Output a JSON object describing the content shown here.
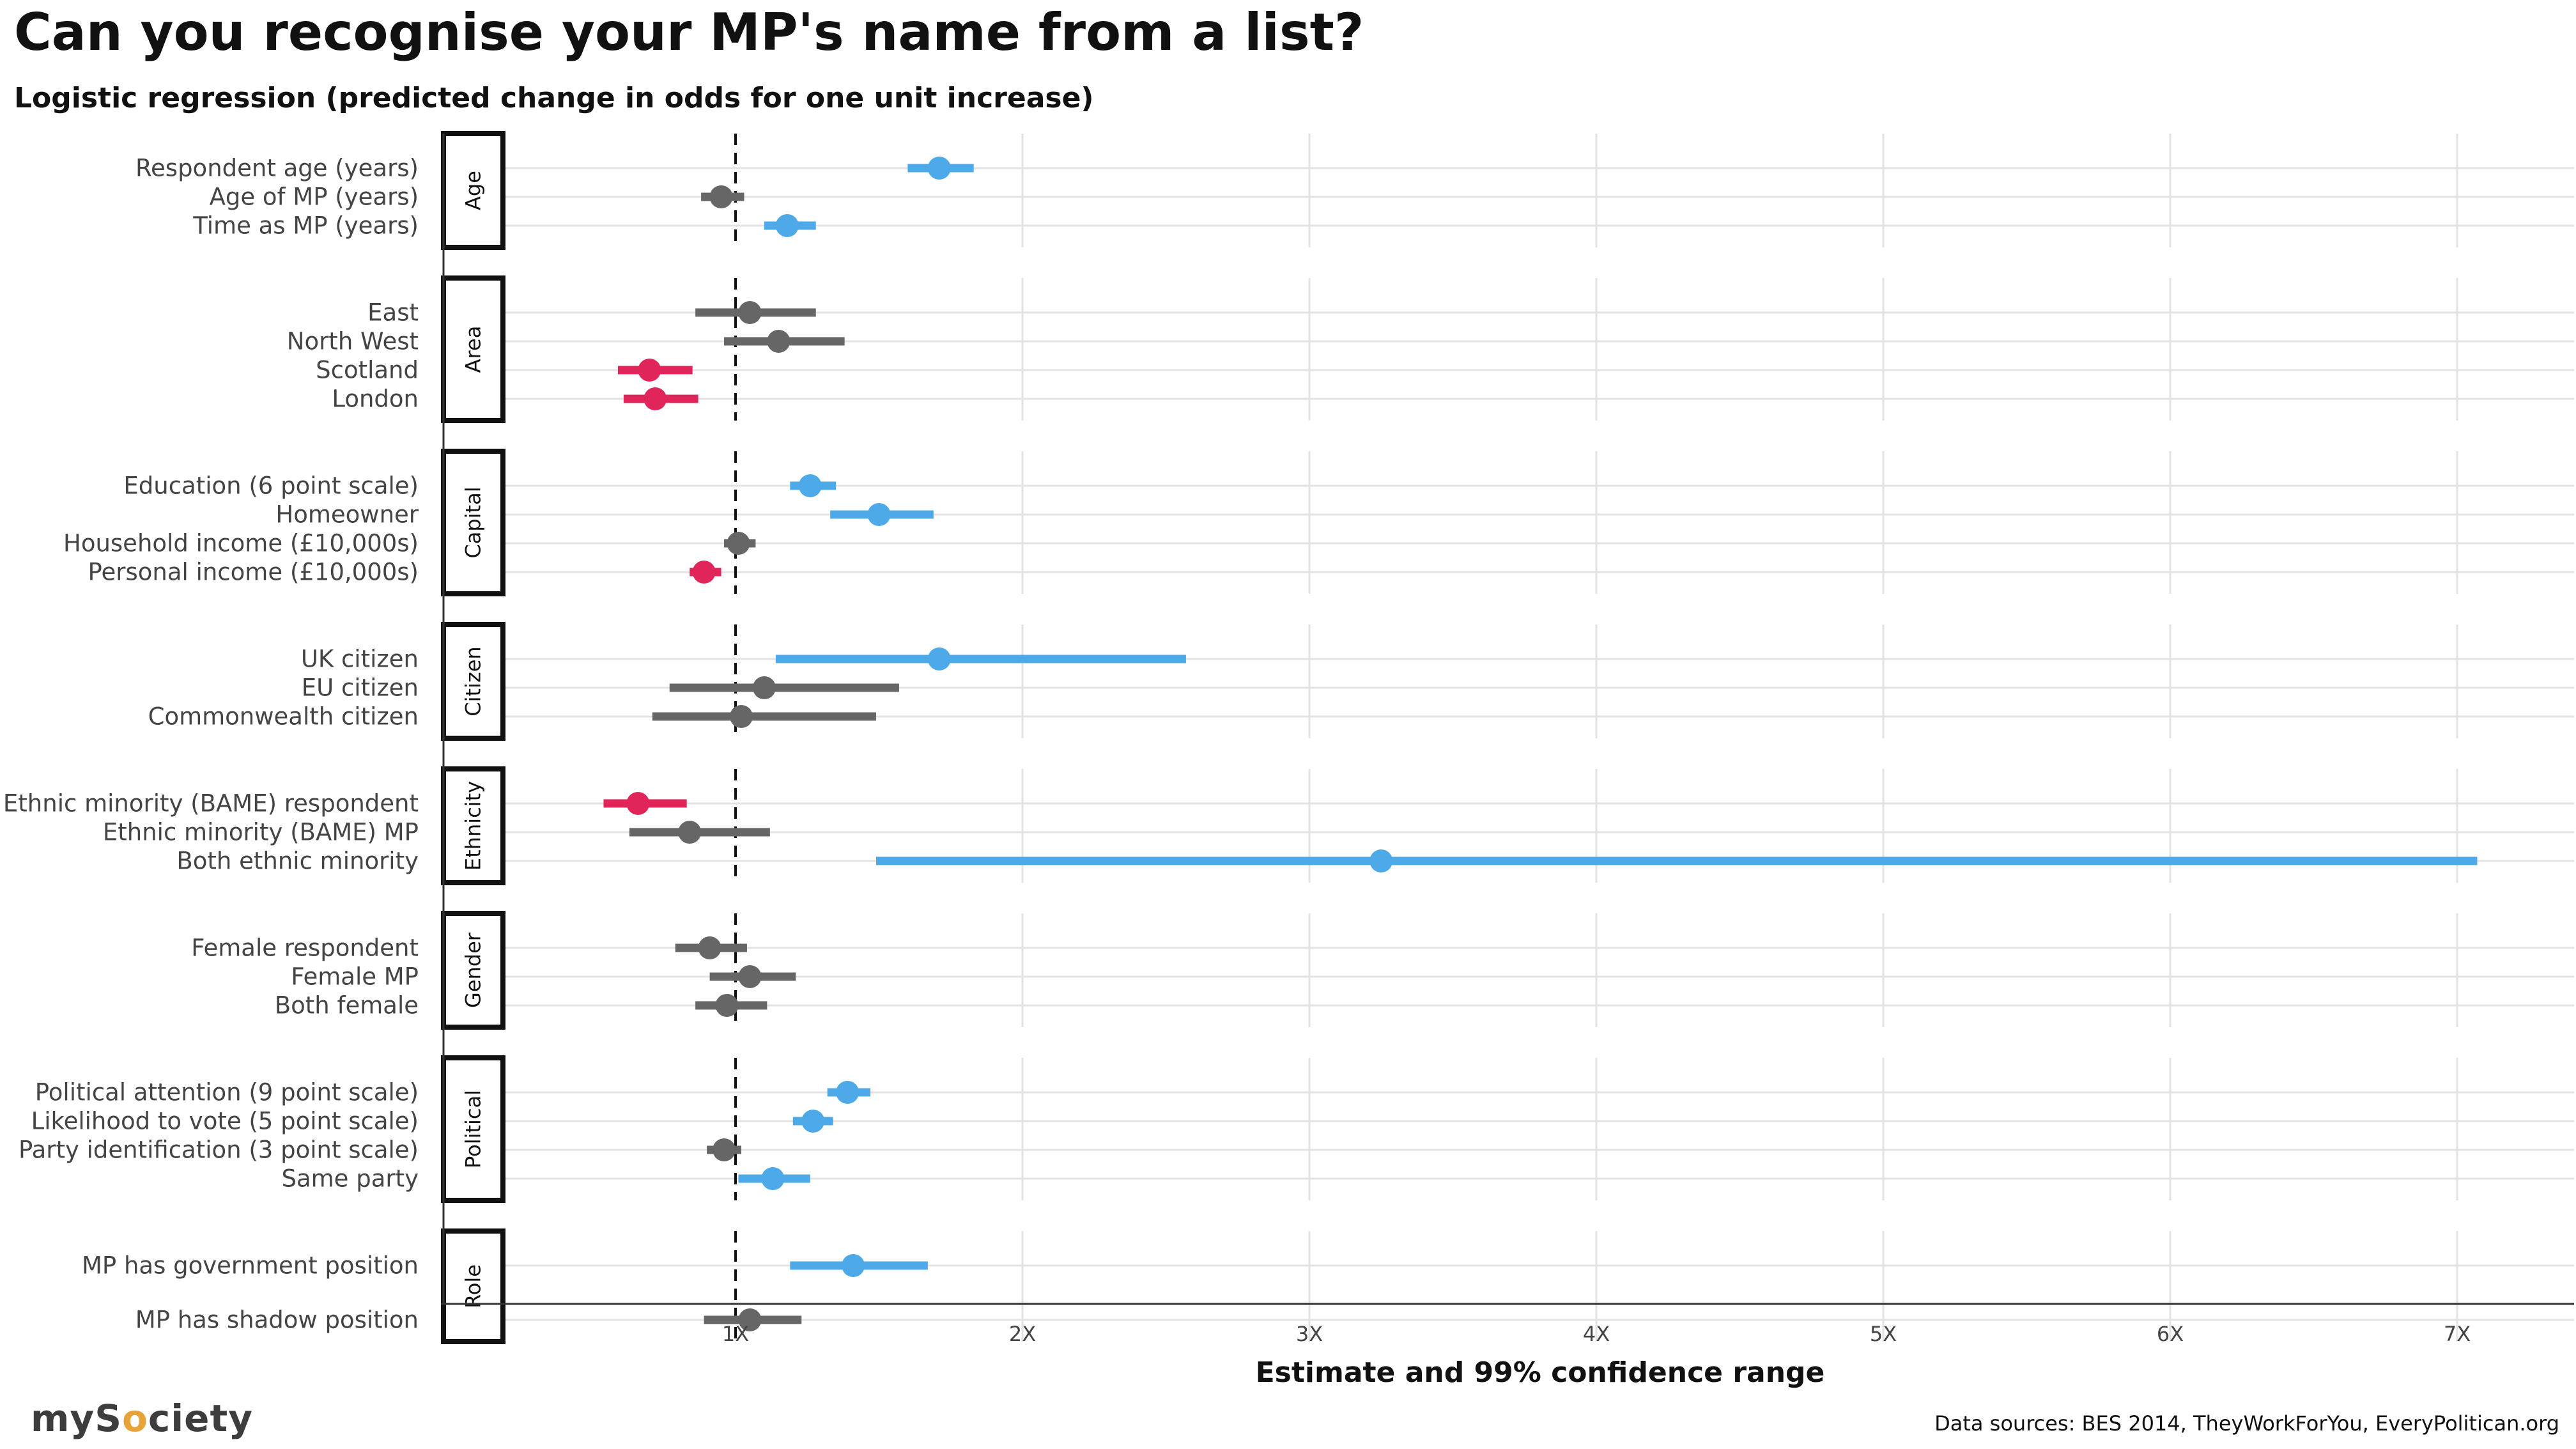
{
  "title": "Can you recognise your MP's name from a list?",
  "subtitle": "Logistic regression (predicted change in odds for one unit increase)",
  "source": "Data sources: BES 2014, TheyWorkForYou, EveryPolitican.org",
  "logo": {
    "pre": "myS",
    "ring": "o",
    "post": "ciety"
  },
  "colors": {
    "positive": "#4da9e8",
    "negative": "#e0255a",
    "neutral": "#666666",
    "grid": "#e3e3e3",
    "axis": "#333333"
  },
  "chart_data": {
    "type": "scatter",
    "xlabel": "Estimate and 99% confidence range",
    "xlim": [
      0.1,
      7.4
    ],
    "x_ticks": [
      {
        "value": 1,
        "label": "1X"
      },
      {
        "value": 2,
        "label": "2X"
      },
      {
        "value": 3,
        "label": "3X"
      },
      {
        "value": 4,
        "label": "4X"
      },
      {
        "value": 5,
        "label": "5X"
      },
      {
        "value": 6,
        "label": "6X"
      },
      {
        "value": 7,
        "label": "7X"
      }
    ],
    "reference_line": 1,
    "groups": [
      {
        "name": "Age",
        "items": [
          {
            "label": "Respondent age (years)",
            "est": 1.71,
            "lo": 1.6,
            "hi": 1.83,
            "sig": "positive"
          },
          {
            "label": "Age of MP (years)",
            "est": 0.95,
            "lo": 0.88,
            "hi": 1.03,
            "sig": "neutral"
          },
          {
            "label": "Time as MP (years)",
            "est": 1.18,
            "lo": 1.1,
            "hi": 1.28,
            "sig": "positive"
          }
        ]
      },
      {
        "name": "Area",
        "items": [
          {
            "label": "East",
            "est": 1.05,
            "lo": 0.86,
            "hi": 1.28,
            "sig": "neutral"
          },
          {
            "label": "North West",
            "est": 1.15,
            "lo": 0.96,
            "hi": 1.38,
            "sig": "neutral"
          },
          {
            "label": "Scotland",
            "est": 0.7,
            "lo": 0.59,
            "hi": 0.85,
            "sig": "negative"
          },
          {
            "label": "London",
            "est": 0.72,
            "lo": 0.61,
            "hi": 0.87,
            "sig": "negative"
          }
        ]
      },
      {
        "name": "Capital",
        "items": [
          {
            "label": "Education (6 point scale)",
            "est": 1.26,
            "lo": 1.19,
            "hi": 1.35,
            "sig": "positive"
          },
          {
            "label": "Homeowner",
            "est": 1.5,
            "lo": 1.33,
            "hi": 1.69,
            "sig": "positive"
          },
          {
            "label": "Household income (£10,000s)",
            "est": 1.01,
            "lo": 0.96,
            "hi": 1.07,
            "sig": "neutral"
          },
          {
            "label": "Personal income (£10,000s)",
            "est": 0.89,
            "lo": 0.84,
            "hi": 0.95,
            "sig": "negative"
          }
        ]
      },
      {
        "name": "Citizen",
        "items": [
          {
            "label": "UK citizen",
            "est": 1.71,
            "lo": 1.14,
            "hi": 2.57,
            "sig": "positive"
          },
          {
            "label": "EU citizen",
            "est": 1.1,
            "lo": 0.77,
            "hi": 1.57,
            "sig": "neutral"
          },
          {
            "label": "Commonwealth citizen",
            "est": 1.02,
            "lo": 0.71,
            "hi": 1.49,
            "sig": "neutral"
          }
        ]
      },
      {
        "name": "Ethnicity",
        "items": [
          {
            "label": "Ethnic minority (BAME) respondent",
            "est": 0.66,
            "lo": 0.54,
            "hi": 0.83,
            "sig": "negative"
          },
          {
            "label": "Ethnic minority (BAME) MP",
            "est": 0.84,
            "lo": 0.63,
            "hi": 1.12,
            "sig": "neutral"
          },
          {
            "label": "Both ethnic minority",
            "est": 3.25,
            "lo": 1.49,
            "hi": 7.07,
            "sig": "positive"
          }
        ]
      },
      {
        "name": "Gender",
        "items": [
          {
            "label": "Female respondent",
            "est": 0.91,
            "lo": 0.79,
            "hi": 1.04,
            "sig": "neutral"
          },
          {
            "label": "Female MP",
            "est": 1.05,
            "lo": 0.91,
            "hi": 1.21,
            "sig": "neutral"
          },
          {
            "label": "Both female",
            "est": 0.97,
            "lo": 0.86,
            "hi": 1.11,
            "sig": "neutral"
          }
        ]
      },
      {
        "name": "Political",
        "items": [
          {
            "label": "Political attention (9 point scale)",
            "est": 1.39,
            "lo": 1.32,
            "hi": 1.47,
            "sig": "positive"
          },
          {
            "label": "Likelihood to vote (5 point scale)",
            "est": 1.27,
            "lo": 1.2,
            "hi": 1.34,
            "sig": "positive"
          },
          {
            "label": "Party identification (3 point scale)",
            "est": 0.96,
            "lo": 0.9,
            "hi": 1.02,
            "sig": "neutral"
          },
          {
            "label": "Same party",
            "est": 1.13,
            "lo": 1.01,
            "hi": 1.26,
            "sig": "positive"
          }
        ]
      },
      {
        "name": "Role",
        "items": [
          {
            "label": "MP has government position",
            "est": 1.41,
            "lo": 1.19,
            "hi": 1.67,
            "sig": "positive"
          },
          {
            "label": "MP has shadow position",
            "est": 1.05,
            "lo": 0.89,
            "hi": 1.23,
            "sig": "neutral"
          }
        ]
      }
    ]
  }
}
